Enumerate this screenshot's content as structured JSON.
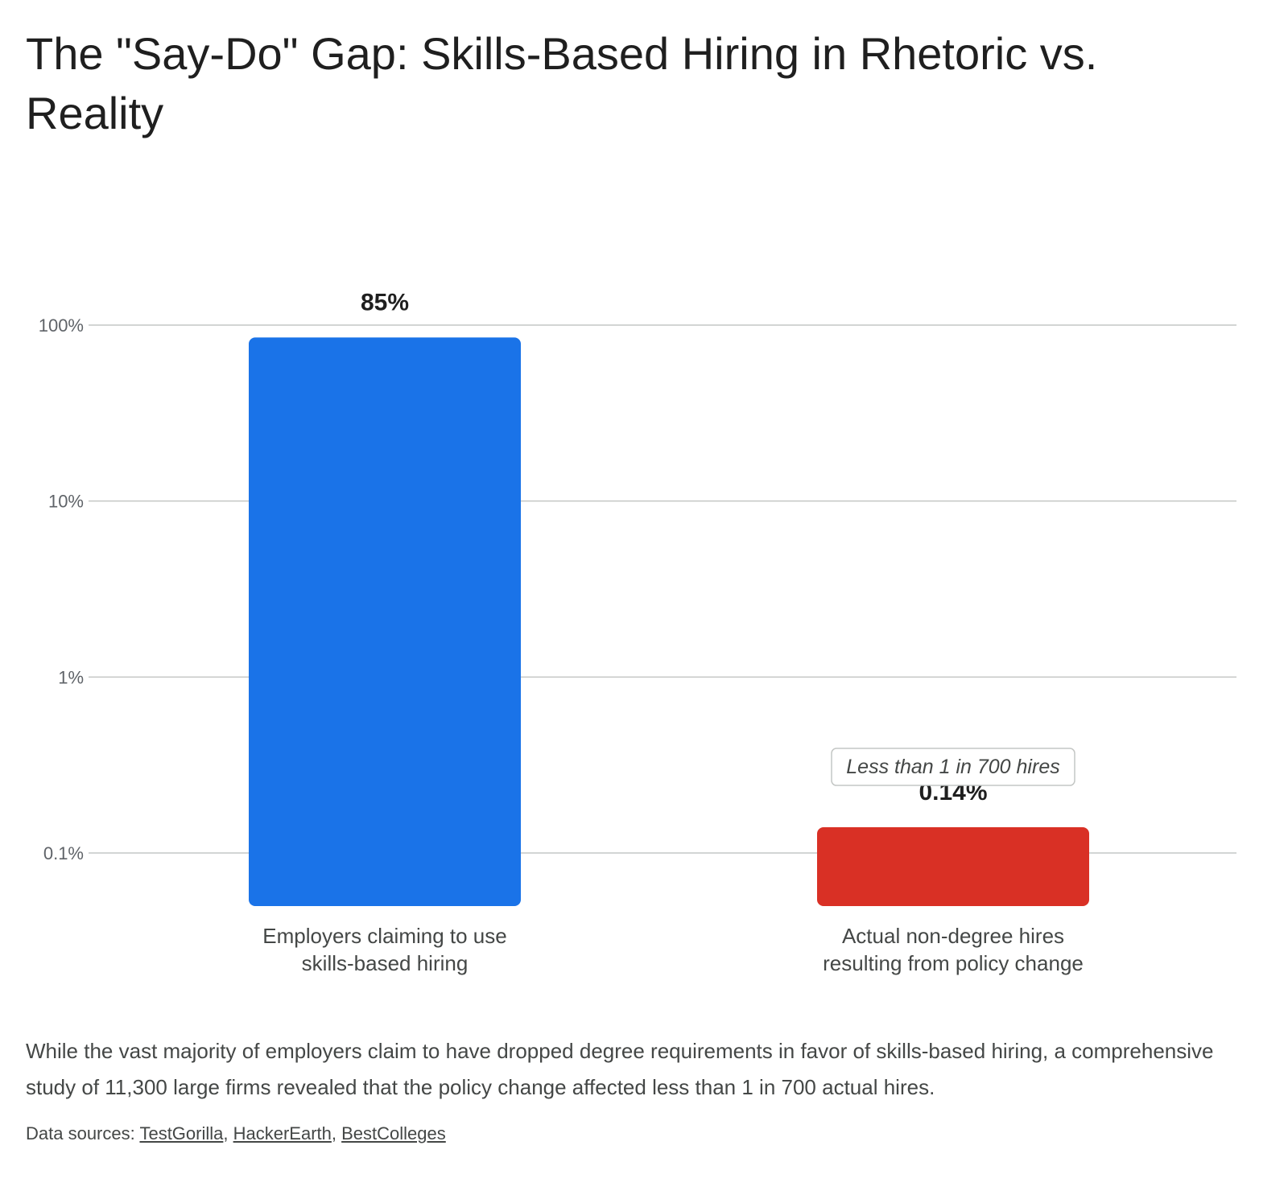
{
  "title": "The \"Say-Do\" Gap: Skills-Based Hiring in Rhetoric vs. Reality",
  "description": "While the vast majority of employers claim to have dropped degree requirements in favor of skills-based hiring, a comprehensive study of 11,300 large firms revealed that the policy change affected less than 1 in 700 actual hires.",
  "sources": {
    "prefix": "Data sources: ",
    "links": [
      "TestGorilla",
      "HackerEarth",
      "BestColleges"
    ]
  },
  "chart_data": {
    "type": "bar",
    "y_scale": "log",
    "ylim": [
      0.1,
      100
    ],
    "y_ticks": [
      {
        "value": 100,
        "label": "100%"
      },
      {
        "value": 10,
        "label": "10%"
      },
      {
        "value": 1,
        "label": "1%"
      },
      {
        "value": 0.1,
        "label": "0.1%"
      }
    ],
    "grid": true,
    "categories": [
      [
        "Employers claiming to use",
        "skills-based hiring"
      ],
      [
        "Actual non-degree hires",
        "resulting from policy change"
      ]
    ],
    "values": [
      85,
      0.14
    ],
    "data_labels": [
      "85%",
      "0.14%"
    ],
    "colors": [
      "#1a73e8",
      "#d93025"
    ],
    "annotations": [
      {
        "category_index": 1,
        "text": "Less than 1 in 700 hires"
      }
    ]
  }
}
